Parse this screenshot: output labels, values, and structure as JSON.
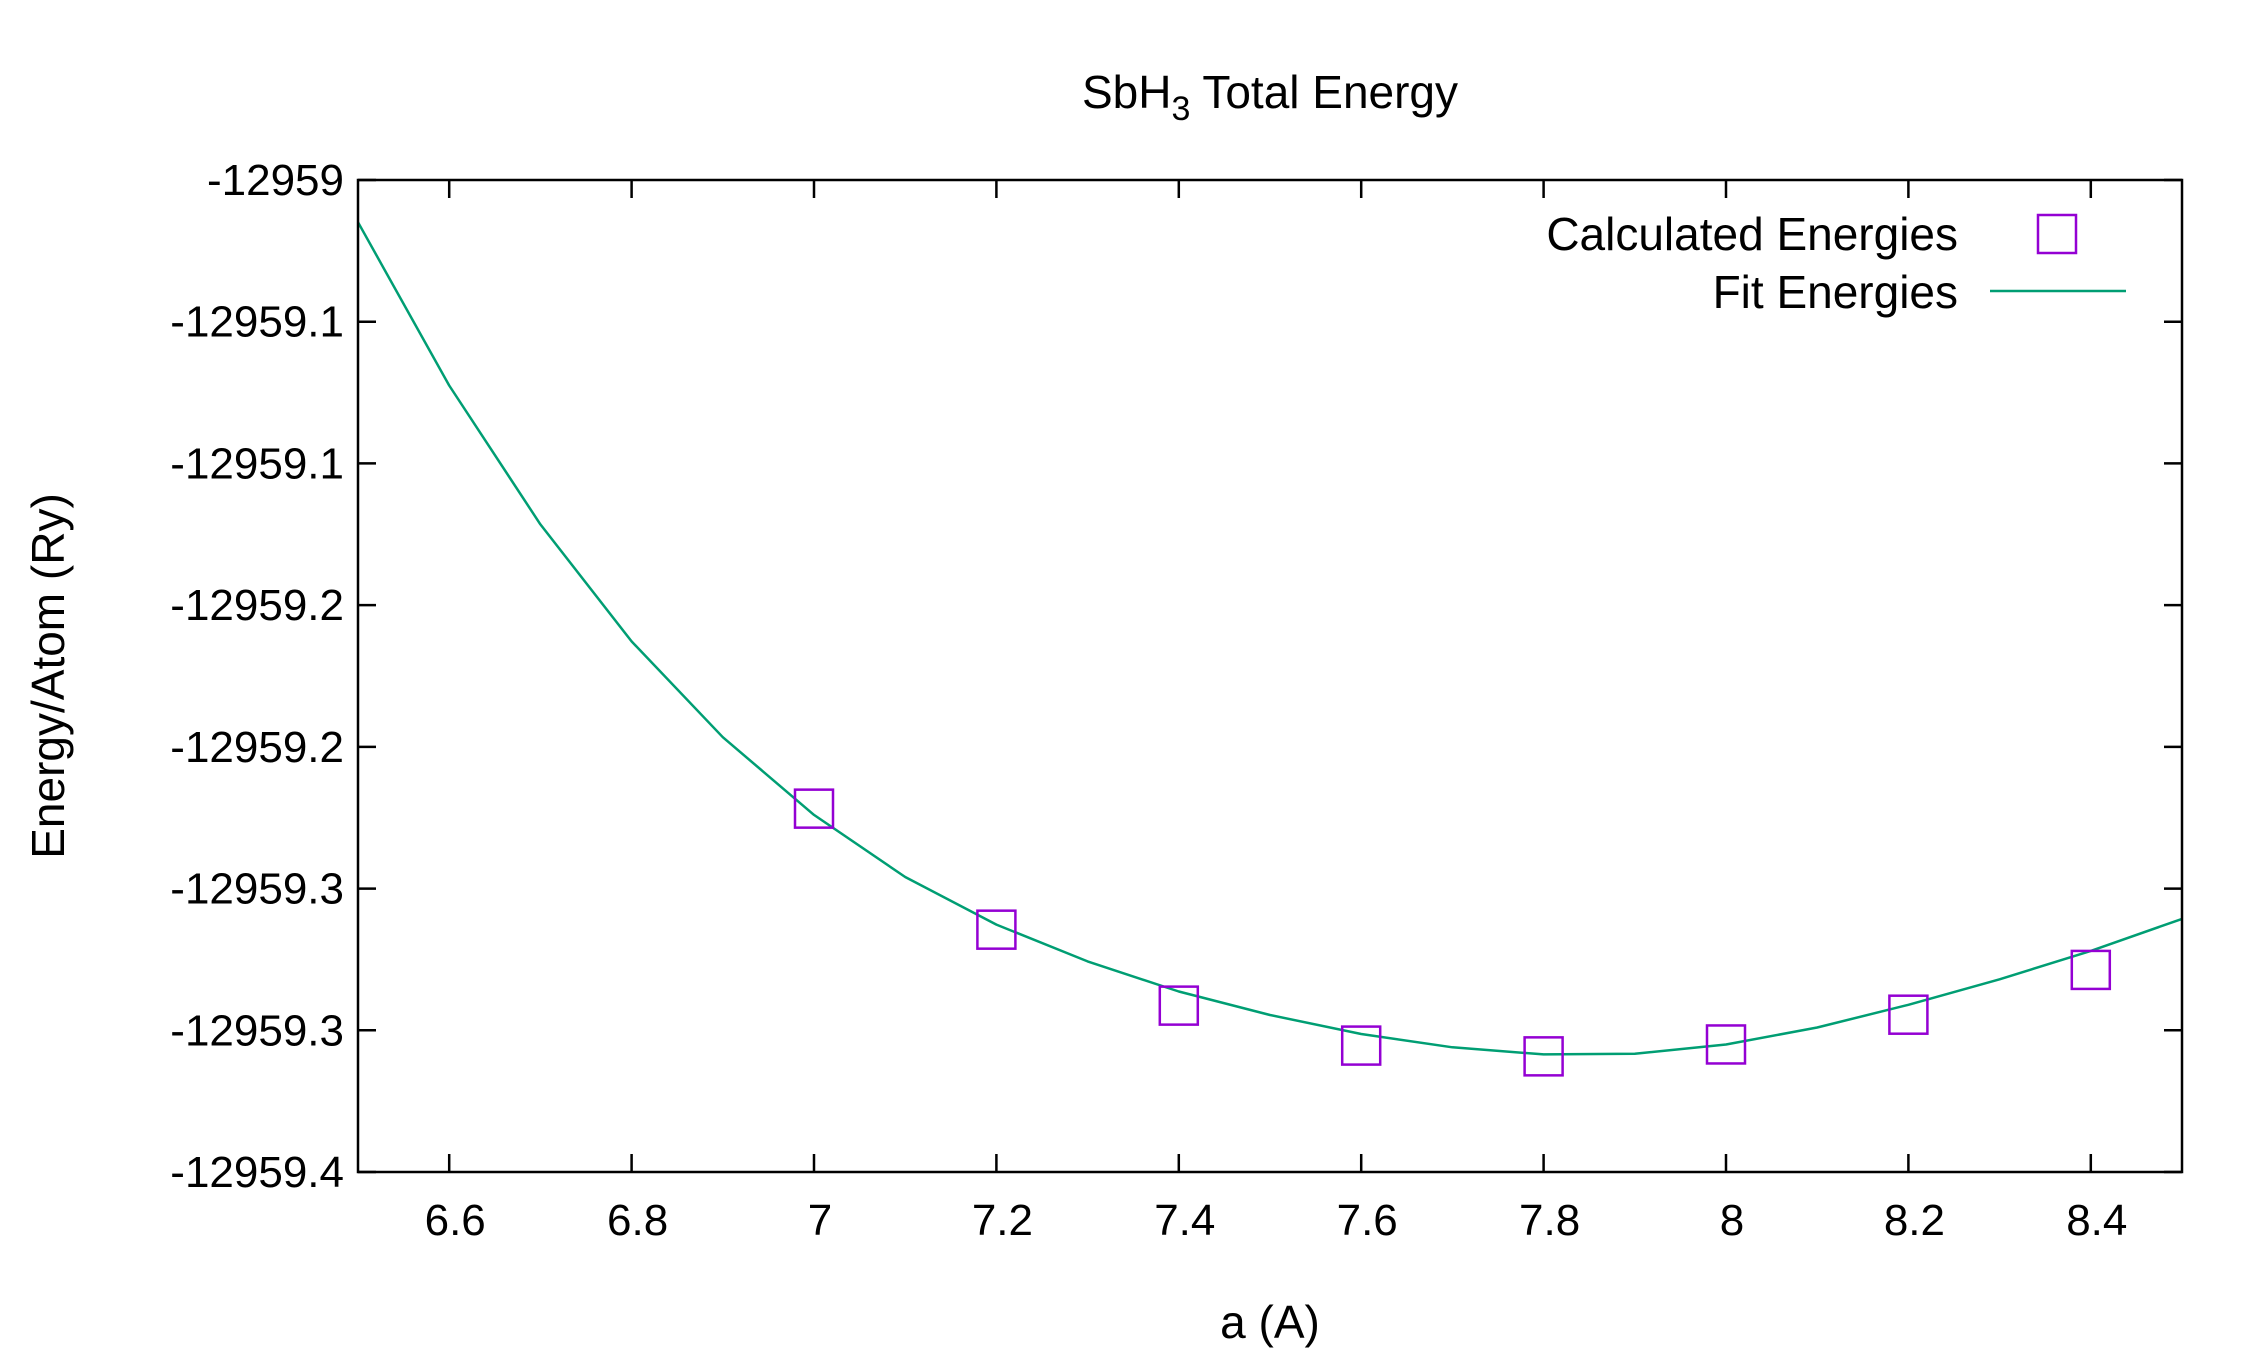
{
  "chart_data": {
    "type": "scatter",
    "title_main": "SbH",
    "title_sub": "3",
    "title_rest": " Total Energy",
    "xlabel": "a (A)",
    "ylabel": "Energy/Atom (Ry)",
    "xlim": [
      6.5,
      8.5
    ],
    "ylim": [
      -12959.35,
      -12959.0
    ],
    "x_ticks": [
      6.6,
      6.8,
      7.0,
      7.2,
      7.4,
      7.6,
      7.8,
      8.0,
      8.2,
      8.4
    ],
    "x_tick_labels": [
      "6.6",
      "6.8",
      "7",
      "7.2",
      "7.4",
      "7.6",
      "7.8",
      "8",
      "8.2",
      "8.4"
    ],
    "y_ticks": [
      -12959.0,
      -12959.05,
      -12959.1,
      -12959.15,
      -12959.2,
      -12959.25,
      -12959.3,
      -12959.35
    ],
    "y_tick_labels": [
      "-12959",
      "-12959.1",
      "-12959.1",
      "-12959.2",
      "-12959.2",
      "-12959.3",
      "-12959.3",
      "-12959.4"
    ],
    "legend_position": "top-right",
    "grid": false,
    "series": [
      {
        "name": "Calculated Energies",
        "kind": "points",
        "marker": "open-square",
        "color": "#9400d3",
        "x": [
          7.0,
          7.2,
          7.4,
          7.6,
          7.8,
          8.0,
          8.2,
          8.4
        ],
        "y": [
          -12959.2218,
          -12959.2645,
          -12959.2913,
          -12959.3054,
          -12959.3092,
          -12959.305,
          -12959.2945,
          -12959.2787
        ]
      },
      {
        "name": "Fit Energies",
        "kind": "line",
        "color": "#009e73",
        "x": [
          6.5,
          6.6,
          6.7,
          6.8,
          6.9,
          7.0,
          7.1,
          7.2,
          7.3,
          7.4,
          7.5,
          7.6,
          7.7,
          7.8,
          7.9,
          8.0,
          8.1,
          8.2,
          8.3,
          8.4,
          8.5
        ],
        "y": [
          -12959.0149,
          -12959.0725,
          -12959.1215,
          -12959.1628,
          -12959.1966,
          -12959.224,
          -12959.2459,
          -12959.2627,
          -12959.2757,
          -12959.2863,
          -12959.2946,
          -12959.3013,
          -12959.306,
          -12959.3085,
          -12959.3083,
          -12959.305,
          -12959.299,
          -12959.291,
          -12959.282,
          -12959.272,
          -12959.2607
        ]
      }
    ]
  }
}
